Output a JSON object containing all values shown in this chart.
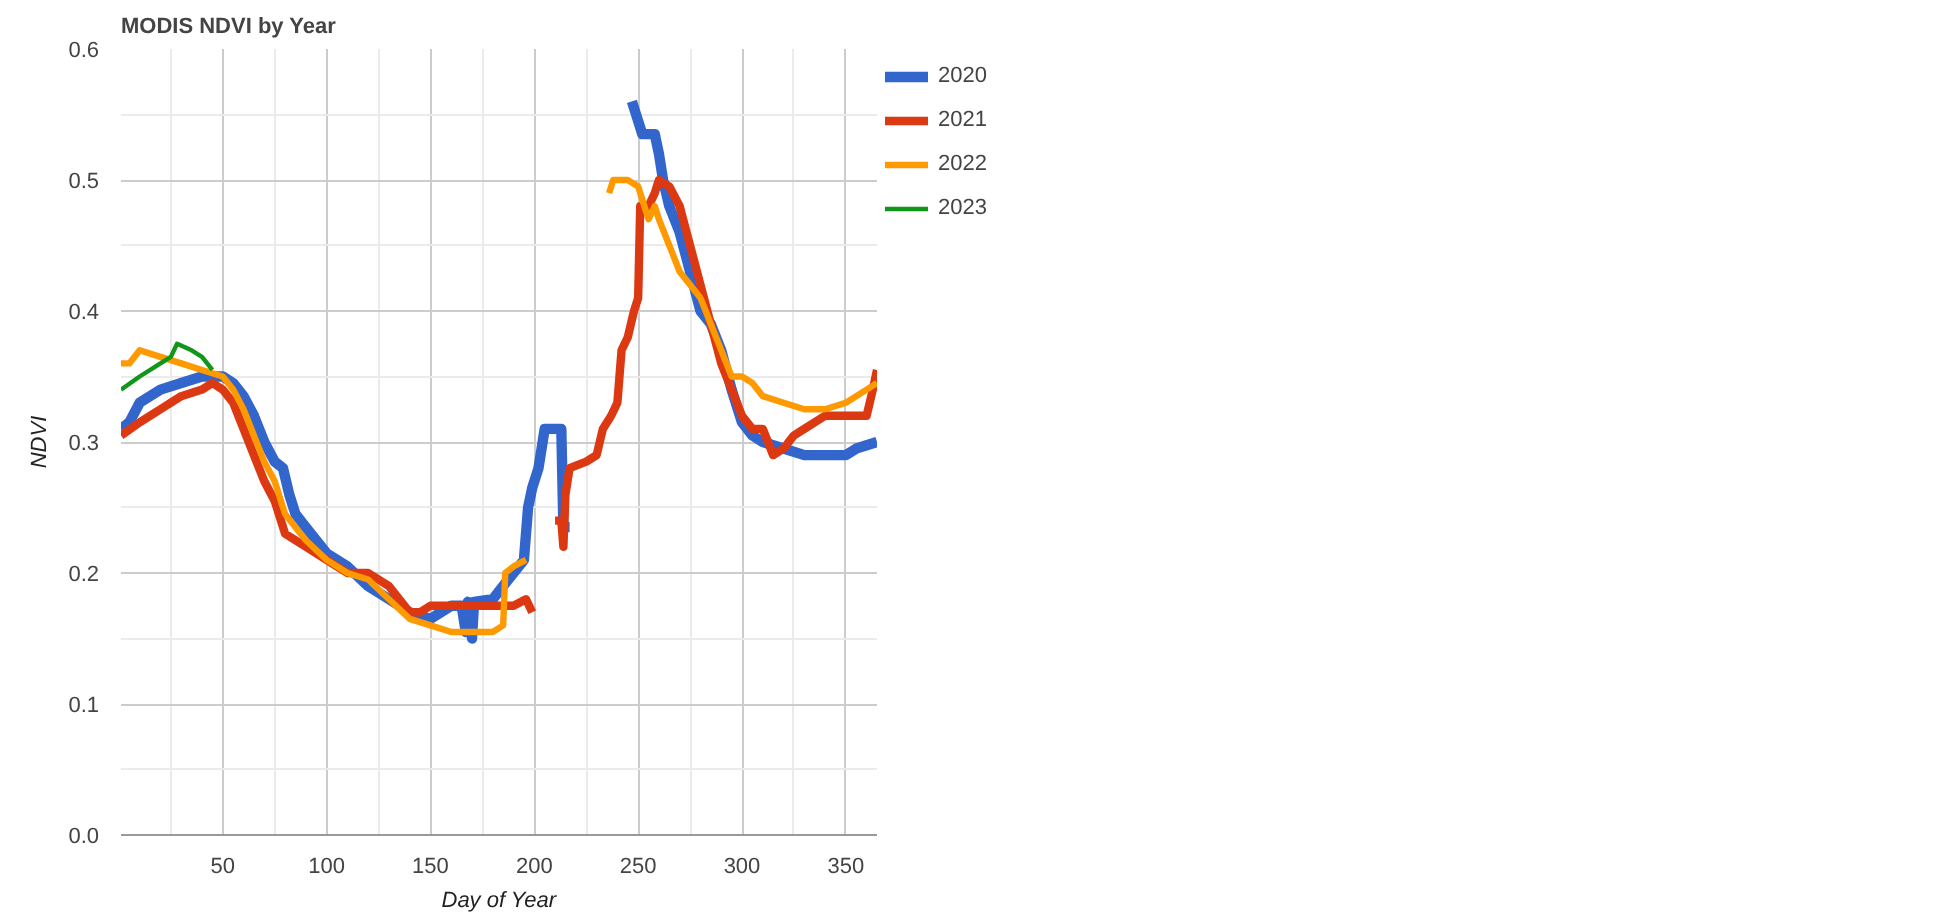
{
  "chart_data": {
    "type": "line",
    "title": "MODIS NDVI by Year",
    "xlabel": "Day of Year",
    "ylabel": "NDVI",
    "xlim": [
      1,
      365
    ],
    "xticks": [
      50,
      100,
      150,
      200,
      250,
      300,
      350
    ],
    "ylim": [
      0,
      0.6
    ],
    "yticks": [
      {
        "value": 0,
        "label": "0.0"
      },
      0.1,
      0.2,
      0.3,
      0.4,
      0.5,
      0.6
    ],
    "grid": true,
    "legend": "top right",
    "series": [
      {
        "name": "2020",
        "color": "#3366cc",
        "x": [
          1,
          5,
          10,
          20,
          30,
          40,
          50,
          55,
          60,
          65,
          70,
          75,
          79,
          82,
          85,
          90,
          95,
          100,
          110,
          120,
          130,
          140,
          150,
          160,
          165,
          167,
          168,
          170,
          171,
          180,
          185,
          190,
          195,
          197,
          199,
          202,
          205,
          213,
          214,
          217,
          232,
          247,
          249,
          252,
          258,
          260,
          262,
          265,
          270,
          275,
          280,
          285,
          290,
          295,
          300,
          305,
          310,
          320,
          330,
          340,
          350,
          355,
          365
        ],
        "values": [
          0.31,
          0.315,
          0.33,
          0.34,
          0.345,
          0.35,
          0.35,
          0.345,
          0.335,
          0.32,
          0.3,
          0.285,
          0.28,
          0.26,
          0.245,
          0.235,
          0.225,
          0.215,
          0.205,
          0.19,
          0.18,
          0.17,
          0.165,
          0.175,
          0.175,
          0.155,
          0.178,
          0.15,
          0.178,
          0.18,
          0.19,
          0.2,
          0.21,
          0.25,
          0.265,
          0.28,
          0.31,
          0.31,
          0.235,
          0.235,
          null,
          0.56,
          0.55,
          0.535,
          0.535,
          0.52,
          0.5,
          0.48,
          0.46,
          0.43,
          0.4,
          0.39,
          0.37,
          0.34,
          0.315,
          0.305,
          0.3,
          0.295,
          0.29,
          0.29,
          0.29,
          0.295,
          0.3
        ]
      },
      {
        "name": "2021",
        "color": "#dc3912",
        "x": [
          1,
          10,
          20,
          30,
          40,
          45,
          50,
          55,
          60,
          65,
          70,
          75,
          80,
          85,
          90,
          100,
          110,
          120,
          130,
          140,
          145,
          150,
          160,
          170,
          180,
          190,
          196,
          199,
          205,
          210,
          213,
          214,
          215,
          217,
          225,
          230,
          233,
          237,
          240,
          242,
          245,
          248,
          250,
          251,
          255,
          258,
          260,
          265,
          270,
          275,
          280,
          285,
          290,
          295,
          300,
          305,
          310,
          315,
          320,
          325,
          330,
          340,
          350,
          360,
          363,
          365
        ],
        "values": [
          0.305,
          0.315,
          0.325,
          0.335,
          0.34,
          0.345,
          0.34,
          0.33,
          0.31,
          0.29,
          0.27,
          0.255,
          0.23,
          0.225,
          0.22,
          0.21,
          0.2,
          0.2,
          0.19,
          0.17,
          0.17,
          0.175,
          0.175,
          0.175,
          0.175,
          0.175,
          0.18,
          0.17,
          null,
          0.24,
          0.24,
          0.22,
          0.26,
          0.28,
          0.285,
          0.29,
          0.31,
          0.32,
          0.33,
          0.37,
          0.38,
          0.4,
          0.41,
          0.48,
          0.48,
          0.49,
          0.5,
          0.495,
          0.48,
          0.45,
          0.42,
          0.39,
          0.36,
          0.34,
          0.32,
          0.31,
          0.31,
          0.29,
          0.295,
          0.305,
          0.31,
          0.32,
          0.32,
          0.32,
          0.34,
          0.355
        ]
      },
      {
        "name": "2022",
        "color": "#ff9900",
        "x": [
          1,
          5,
          10,
          20,
          30,
          40,
          50,
          55,
          60,
          65,
          70,
          75,
          80,
          85,
          90,
          100,
          110,
          120,
          130,
          140,
          150,
          160,
          170,
          180,
          185,
          186,
          190,
          196,
          215,
          236,
          238,
          245,
          250,
          255,
          258,
          260,
          265,
          270,
          275,
          280,
          285,
          290,
          295,
          300,
          305,
          310,
          320,
          330,
          340,
          350,
          360,
          365
        ],
        "values": [
          0.36,
          0.36,
          0.37,
          0.365,
          0.36,
          0.355,
          0.35,
          0.34,
          0.325,
          0.305,
          0.285,
          0.27,
          0.245,
          0.235,
          0.225,
          0.21,
          0.2,
          0.195,
          0.18,
          0.165,
          0.16,
          0.155,
          0.155,
          0.155,
          0.16,
          0.2,
          0.205,
          0.21,
          null,
          0.49,
          0.5,
          0.5,
          0.495,
          0.47,
          0.48,
          0.47,
          0.45,
          0.43,
          0.42,
          0.41,
          0.39,
          0.37,
          0.35,
          0.35,
          0.345,
          0.335,
          0.33,
          0.325,
          0.325,
          0.33,
          0.34,
          0.345
        ]
      },
      {
        "name": "2023",
        "color": "#109618",
        "x": [
          1,
          10,
          20,
          25,
          28,
          35,
          40,
          45
        ],
        "values": [
          0.34,
          0.35,
          0.36,
          0.365,
          0.375,
          0.37,
          0.365,
          0.355
        ]
      }
    ]
  }
}
